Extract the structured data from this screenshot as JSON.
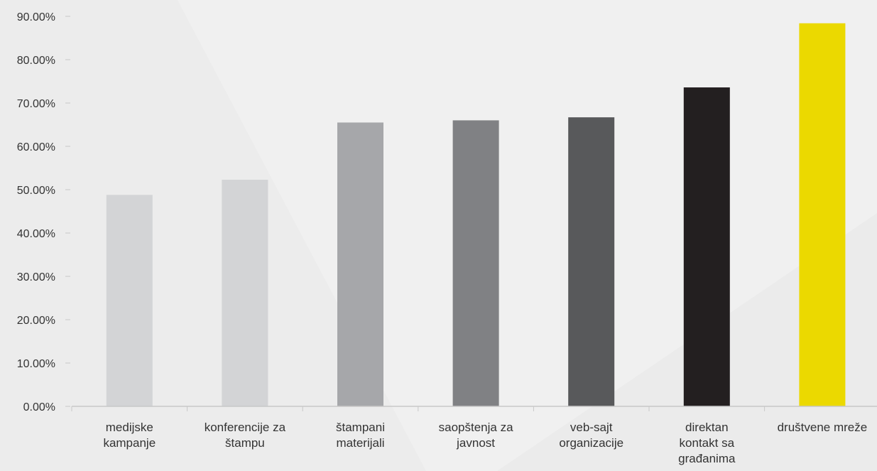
{
  "chart_data": {
    "type": "bar",
    "title": "",
    "xlabel": "",
    "ylabel": "",
    "categories": [
      [
        "medijske",
        "kampanje"
      ],
      [
        "konferencije za",
        "štampu"
      ],
      [
        "štampani",
        "materijali"
      ],
      [
        "saopštenja za",
        "javnost"
      ],
      [
        "veb-sajt",
        "organizacije"
      ],
      [
        "direktan",
        "kontakt sa",
        "građanima"
      ],
      [
        "društvene mreže"
      ]
    ],
    "values": [
      48.8,
      52.3,
      65.5,
      66.0,
      66.7,
      73.6,
      88.4
    ],
    "bar_colors": [
      "#d3d4d6",
      "#d3d4d6",
      "#a6a7aa",
      "#808184",
      "#58595b",
      "#231f20",
      "#ebd900"
    ],
    "ylim": [
      0,
      90
    ],
    "yticks": [
      0,
      10,
      20,
      30,
      40,
      50,
      60,
      70,
      80,
      90
    ],
    "ytick_labels": [
      "0.00%",
      "10.00%",
      "20.00%",
      "30.00%",
      "40.00%",
      "50.00%",
      "60.00%",
      "70.00%",
      "80.00%",
      "90.00%"
    ],
    "grid": false,
    "legend": "none",
    "colors": {
      "background": "#f0f0f0",
      "axis": "#c8c8c8",
      "text": "#333333"
    }
  }
}
